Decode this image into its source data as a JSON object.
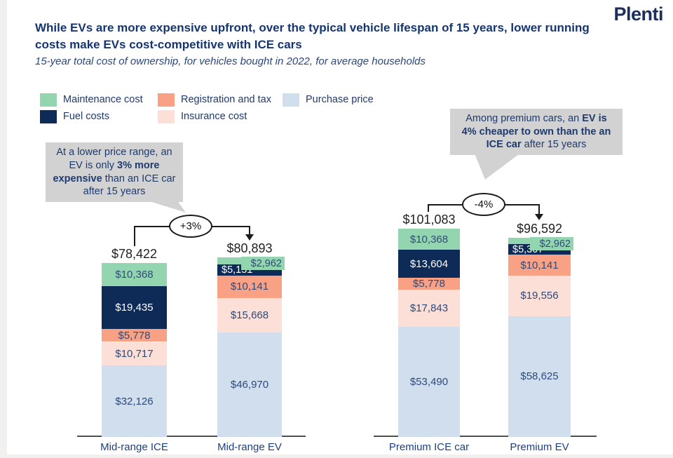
{
  "page": {
    "logo": "Plenti",
    "title": "While EVs are more expensive upfront, over the typical vehicle lifespan of 15 years, lower running costs make EVs cost-competitive with ICE cars",
    "subtitle": "15-year total cost of ownership, for vehicles bought in 2022, for average households"
  },
  "colors": {
    "maintenance": "#93d5ae",
    "fuel": "#0e2b57",
    "registration": "#f9a185",
    "insurance": "#fcdfd6",
    "purchase": "#d0deee",
    "callout_bg": "#d2d2d2",
    "title_navy": "#16356f",
    "label_navy": "#2e4a7c"
  },
  "legend": {
    "items": [
      {
        "label": "Maintenance cost",
        "color": "#93d5ae"
      },
      {
        "label": "Fuel costs",
        "color": "#0e2b57"
      },
      {
        "label": "Registration and tax",
        "color": "#f9a185"
      },
      {
        "label": "Insurance cost",
        "color": "#fcdfd6"
      },
      {
        "label": "Purchase price",
        "color": "#d0deee"
      }
    ]
  },
  "callouts": [
    {
      "parts": [
        {
          "text": "At a lower price range, an EV is only ",
          "bold": false
        },
        {
          "text": "3% more expensive",
          "bold": true
        },
        {
          "text": " than an ICE car after 15 years",
          "bold": false
        }
      ]
    },
    {
      "parts": [
        {
          "text": "Among premium cars, an ",
          "bold": false
        },
        {
          "text": "EV is 4% cheaper to own than the an ICE car",
          "bold": true
        },
        {
          "text": " after 15 years",
          "bold": false
        }
      ]
    }
  ],
  "chart_data": {
    "type": "bar",
    "stacked": true,
    "title": "While EVs are more expensive upfront, over the typical vehicle lifespan of 15 years, lower running costs make EVs cost-competitive with ICE cars",
    "subtitle": "15-year total cost of ownership, for vehicles bought in 2022, for average households",
    "unit": "USD",
    "categories": [
      "Mid-range ICE",
      "Mid-range EV",
      "Premium ICE car",
      "Premium EV"
    ],
    "series": [
      {
        "name": "Maintenance cost",
        "values": [
          10368,
          2962,
          10368,
          2962
        ]
      },
      {
        "name": "Fuel costs",
        "values": [
          19435,
          5151,
          13604,
          5307
        ]
      },
      {
        "name": "Registration and tax",
        "values": [
          5778,
          10141,
          5778,
          10141
        ]
      },
      {
        "name": "Insurance cost",
        "values": [
          10717,
          15668,
          17843,
          19556
        ]
      },
      {
        "name": "Purchase price",
        "values": [
          32126,
          46970,
          53490,
          58625
        ]
      }
    ],
    "bars": [
      {
        "category": "Mid-range ICE",
        "total": 78422,
        "total_label": "$78,422",
        "segments": [
          {
            "name": "Maintenance cost",
            "value": 10368,
            "label": "$10,368",
            "label_pos": "center"
          },
          {
            "name": "Fuel costs",
            "value": 19435,
            "label": "$19,435",
            "label_pos": "center"
          },
          {
            "name": "Registration and tax",
            "value": 5778,
            "label": "$5,778",
            "label_pos": "center"
          },
          {
            "name": "Insurance cost",
            "value": 10717,
            "label": "$10,717",
            "label_pos": "center"
          },
          {
            "name": "Purchase price",
            "value": 32126,
            "label": "$32,126",
            "label_pos": "center"
          }
        ]
      },
      {
        "category": "Mid-range EV",
        "total": 80893,
        "total_label": "$80,893",
        "segments": [
          {
            "name": "Maintenance cost",
            "value": 2962,
            "label": "$2,962",
            "label_pos": "chip-right"
          },
          {
            "name": "Fuel costs",
            "value": 5151,
            "label": "$5,151",
            "label_pos": "left"
          },
          {
            "name": "Registration and tax",
            "value": 10141,
            "label": "$10,141",
            "label_pos": "center"
          },
          {
            "name": "Insurance cost",
            "value": 15668,
            "label": "$15,668",
            "label_pos": "center"
          },
          {
            "name": "Purchase price",
            "value": 46970,
            "label": "$46,970",
            "label_pos": "center"
          }
        ]
      },
      {
        "category": "Premium ICE car",
        "total": 101083,
        "total_label": "$101,083",
        "segments": [
          {
            "name": "Maintenance cost",
            "value": 10368,
            "label": "$10,368",
            "label_pos": "center"
          },
          {
            "name": "Fuel costs",
            "value": 13604,
            "label": "$13,604",
            "label_pos": "center"
          },
          {
            "name": "Registration and tax",
            "value": 5778,
            "label": "$5,778",
            "label_pos": "center"
          },
          {
            "name": "Insurance cost",
            "value": 17843,
            "label": "$17,843",
            "label_pos": "center"
          },
          {
            "name": "Purchase price",
            "value": 53490,
            "label": "$53,490",
            "label_pos": "center"
          }
        ]
      },
      {
        "category": "Premium EV",
        "total": 96592,
        "total_label": "$96,592",
        "segments": [
          {
            "name": "Maintenance cost",
            "value": 2962,
            "label": "$2,962",
            "label_pos": "chip-right"
          },
          {
            "name": "Fuel costs",
            "value": 5307,
            "label": "$5,307",
            "label_pos": "left"
          },
          {
            "name": "Registration and tax",
            "value": 10141,
            "label": "$10,141",
            "label_pos": "center"
          },
          {
            "name": "Insurance cost",
            "value": 19556,
            "label": "$19,556",
            "label_pos": "center"
          },
          {
            "name": "Purchase price",
            "value": 58625,
            "label": "$58,625",
            "label_pos": "center"
          }
        ]
      }
    ],
    "annotations": [
      {
        "label": "+3%",
        "between": [
          "Mid-range ICE",
          "Mid-range EV"
        ]
      },
      {
        "label": "-4%",
        "between": [
          "Premium ICE car",
          "Premium EV"
        ]
      }
    ],
    "legend_position": "top-left",
    "grid": false
  }
}
